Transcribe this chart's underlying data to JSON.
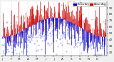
{
  "bg_color": "#f0f0f0",
  "plot_bg": "#ffffff",
  "bar_color_above": "#cc0000",
  "bar_color_below": "#0000cc",
  "legend_labels": [
    "Below Avg",
    "Above Avg"
  ],
  "legend_colors": [
    "#0000cc",
    "#cc0000"
  ],
  "ylim": [
    15,
    100
  ],
  "ytick_vals": [
    20,
    30,
    40,
    50,
    60,
    70,
    80,
    90
  ],
  "num_points": 365,
  "seed": 99,
  "mean": 60,
  "amplitude": 15,
  "noise_scale": 18,
  "grid_color": "#999999",
  "tick_label_size": 3.0,
  "axis_color": "#222222",
  "bar_linewidth": 0.5
}
